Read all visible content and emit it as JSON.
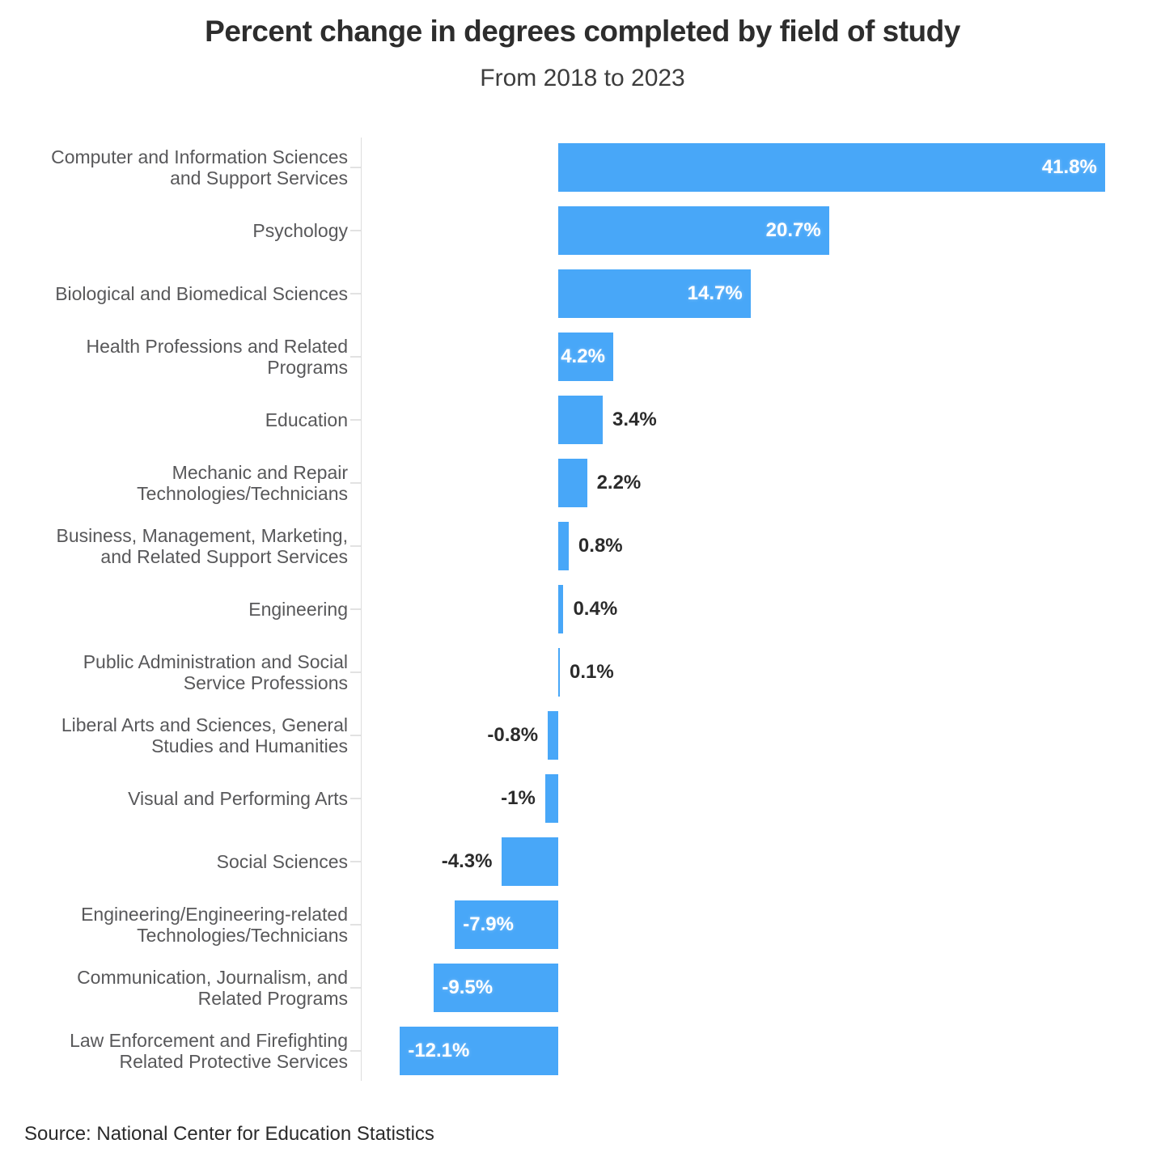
{
  "header": {
    "title": "Percent change in degrees completed by field of study",
    "subtitle": "From 2018 to 2023"
  },
  "source": "Source: National Center for Education Statistics",
  "chart_data": {
    "type": "bar",
    "orientation": "horizontal",
    "title": "Percent change in degrees completed by field of study",
    "subtitle": "From 2018 to 2023",
    "xlabel": "",
    "ylabel": "",
    "xlim": [
      -12.1,
      41.8
    ],
    "grid": false,
    "legend": "none",
    "colors": {
      "bar": "#48a7f8",
      "axis_line": "#dddddd",
      "category_label": "#58585a",
      "value_label_dark": "#2b2b2b",
      "value_label_light": "#ffffff"
    },
    "categories": [
      "Computer and Information Sciences and Support Services",
      "Psychology",
      "Biological and Biomedical Sciences",
      "Health Professions and Related Programs",
      "Education",
      "Mechanic and Repair Technologies/Technicians",
      "Business, Management, Marketing, and Related Support Services",
      "Engineering",
      "Public Administration and Social Service Professions",
      "Liberal Arts and Sciences, General Studies and Humanities",
      "Visual and Performing Arts",
      "Social Sciences",
      "Engineering/Engineering-related Technologies/Technicians",
      "Communication, Journalism, and Related Programs",
      "Law Enforcement and Firefighting Related Protective Services"
    ],
    "values": [
      41.8,
      20.7,
      14.7,
      4.2,
      3.4,
      2.2,
      0.8,
      0.4,
      0.1,
      -0.8,
      -1,
      -4.3,
      -7.9,
      -9.5,
      -12.1
    ],
    "items": [
      {
        "label_lines": [
          "Computer and Information Sciences",
          "and Support Services"
        ],
        "value": 41.8,
        "value_label": "41.8%",
        "label_inside": true
      },
      {
        "label_lines": [
          "Psychology"
        ],
        "value": 20.7,
        "value_label": "20.7%",
        "label_inside": true
      },
      {
        "label_lines": [
          "Biological and Biomedical Sciences"
        ],
        "value": 14.7,
        "value_label": "14.7%",
        "label_inside": true
      },
      {
        "label_lines": [
          "Health Professions and Related",
          "Programs"
        ],
        "value": 4.2,
        "value_label": "4.2%",
        "label_inside": true
      },
      {
        "label_lines": [
          "Education"
        ],
        "value": 3.4,
        "value_label": "3.4%",
        "label_inside": false
      },
      {
        "label_lines": [
          "Mechanic and Repair",
          "Technologies/Technicians"
        ],
        "value": 2.2,
        "value_label": "2.2%",
        "label_inside": false
      },
      {
        "label_lines": [
          "Business, Management, Marketing,",
          "and Related Support Services"
        ],
        "value": 0.8,
        "value_label": "0.8%",
        "label_inside": false
      },
      {
        "label_lines": [
          "Engineering"
        ],
        "value": 0.4,
        "value_label": "0.4%",
        "label_inside": false
      },
      {
        "label_lines": [
          "Public Administration and Social",
          "Service Professions"
        ],
        "value": 0.1,
        "value_label": "0.1%",
        "label_inside": false
      },
      {
        "label_lines": [
          "Liberal Arts and Sciences, General",
          "Studies and Humanities"
        ],
        "value": -0.8,
        "value_label": "-0.8%",
        "label_inside": false
      },
      {
        "label_lines": [
          "Visual and Performing Arts"
        ],
        "value": -1,
        "value_label": "-1%",
        "label_inside": false
      },
      {
        "label_lines": [
          "Social Sciences"
        ],
        "value": -4.3,
        "value_label": "-4.3%",
        "label_inside": false
      },
      {
        "label_lines": [
          "Engineering/Engineering-related",
          "Technologies/Technicians"
        ],
        "value": -7.9,
        "value_label": "-7.9%",
        "label_inside": true
      },
      {
        "label_lines": [
          "Communication, Journalism, and",
          "Related Programs"
        ],
        "value": -9.5,
        "value_label": "-9.5%",
        "label_inside": true
      },
      {
        "label_lines": [
          "Law Enforcement and Firefighting",
          "Related Protective Services"
        ],
        "value": -12.1,
        "value_label": "-12.1%",
        "label_inside": true
      }
    ]
  }
}
